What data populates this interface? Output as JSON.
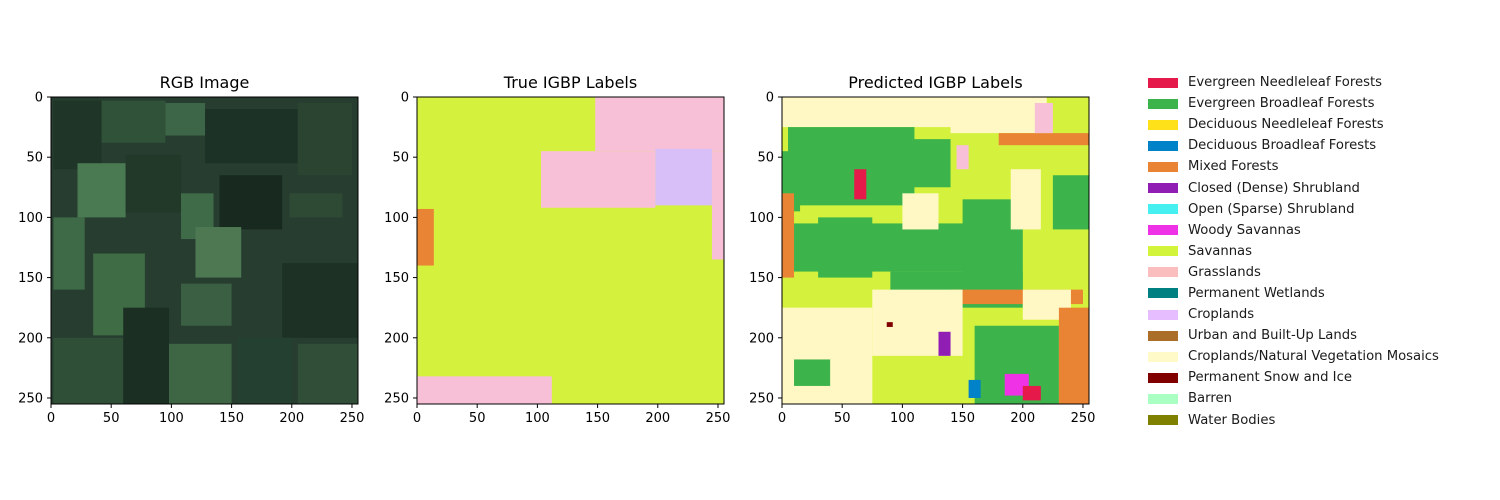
{
  "chart_data": [
    {
      "type": "heatmap",
      "title": "RGB Image",
      "xlim": [
        0,
        255
      ],
      "ylim": [
        255,
        0
      ],
      "xticks": [
        0,
        50,
        100,
        150,
        200,
        250
      ],
      "yticks": [
        0,
        50,
        100,
        150,
        200,
        250
      ],
      "fill": "#263d30",
      "regions": [
        {
          "x": [
            2,
            42
          ],
          "y": [
            3,
            60
          ],
          "color": "#1e3528"
        },
        {
          "x": [
            42,
            95
          ],
          "y": [
            3,
            38
          ],
          "color": "#2f5239"
        },
        {
          "x": [
            95,
            128
          ],
          "y": [
            5,
            32
          ],
          "color": "#3d6547"
        },
        {
          "x": [
            128,
            205
          ],
          "y": [
            10,
            55
          ],
          "color": "#1c3226"
        },
        {
          "x": [
            205,
            250
          ],
          "y": [
            5,
            65
          ],
          "color": "#2a4431"
        },
        {
          "x": [
            22,
            62
          ],
          "y": [
            55,
            100
          ],
          "color": "#4a7a52"
        },
        {
          "x": [
            62,
            108
          ],
          "y": [
            48,
            96
          ],
          "color": "#22392a"
        },
        {
          "x": [
            108,
            135
          ],
          "y": [
            80,
            118
          ],
          "color": "#3f6b48"
        },
        {
          "x": [
            140,
            192
          ],
          "y": [
            65,
            110
          ],
          "color": "#18291f"
        },
        {
          "x": [
            198,
            242
          ],
          "y": [
            80,
            100
          ],
          "color": "#2e4a35"
        },
        {
          "x": [
            2,
            28
          ],
          "y": [
            100,
            160
          ],
          "color": "#3e6a47"
        },
        {
          "x": [
            35,
            78
          ],
          "y": [
            130,
            198
          ],
          "color": "#3f6b45"
        },
        {
          "x": [
            120,
            158
          ],
          "y": [
            108,
            150
          ],
          "color": "#4d7852"
        },
        {
          "x": [
            108,
            150
          ],
          "y": [
            155,
            190
          ],
          "color": "#3a5f42"
        },
        {
          "x": [
            192,
            255
          ],
          "y": [
            138,
            200
          ],
          "color": "#1d3125"
        },
        {
          "x": [
            2,
            60
          ],
          "y": [
            200,
            255
          ],
          "color": "#2f5036"
        },
        {
          "x": [
            60,
            98
          ],
          "y": [
            175,
            255
          ],
          "color": "#1b2f23"
        },
        {
          "x": [
            98,
            150
          ],
          "y": [
            205,
            255
          ],
          "color": "#3e6544"
        },
        {
          "x": [
            155,
            200
          ],
          "y": [
            200,
            255
          ],
          "color": "#244030"
        },
        {
          "x": [
            205,
            255
          ],
          "y": [
            205,
            255
          ],
          "color": "#314f38"
        }
      ]
    },
    {
      "type": "heatmap",
      "title": "True IGBP Labels",
      "xlim": [
        0,
        255
      ],
      "ylim": [
        255,
        0
      ],
      "xticks": [
        0,
        50,
        100,
        150,
        200,
        250
      ],
      "yticks": [
        0,
        50,
        100,
        150,
        200,
        250
      ],
      "fill": "#d4f23d",
      "regions": [
        {
          "x": [
            148,
            255
          ],
          "y": [
            0,
            45
          ],
          "color": "#f8c0d6"
        },
        {
          "x": [
            103,
            198
          ],
          "y": [
            45,
            92
          ],
          "color": "#f8c0d6"
        },
        {
          "x": [
            198,
            245
          ],
          "y": [
            43,
            90
          ],
          "color": "#d9bff8"
        },
        {
          "x": [
            245,
            255
          ],
          "y": [
            45,
            135
          ],
          "color": "#f8c0d6"
        },
        {
          "x": [
            0,
            14
          ],
          "y": [
            93,
            140
          ],
          "color": "#e98434"
        },
        {
          "x": [
            0,
            112
          ],
          "y": [
            232,
            255
          ],
          "color": "#f8c0d6"
        }
      ]
    },
    {
      "type": "heatmap",
      "title": "Predicted IGBP Labels",
      "xlim": [
        0,
        255
      ],
      "ylim": [
        255,
        0
      ],
      "xticks": [
        0,
        50,
        100,
        150,
        200,
        250
      ],
      "yticks": [
        0,
        50,
        100,
        150,
        200,
        250
      ],
      "fill": "#d4f23d",
      "regions": [
        {
          "x": [
            0,
            150
          ],
          "y": [
            0,
            25
          ],
          "color": "#fff8c4"
        },
        {
          "x": [
            140,
            220
          ],
          "y": [
            0,
            30
          ],
          "color": "#fff8c4"
        },
        {
          "x": [
            220,
            255
          ],
          "y": [
            0,
            30
          ],
          "color": "#d4f23d"
        },
        {
          "x": [
            5,
            110
          ],
          "y": [
            25,
            90
          ],
          "color": "#3cb44b"
        },
        {
          "x": [
            70,
            140
          ],
          "y": [
            35,
            75
          ],
          "color": "#3cb44b"
        },
        {
          "x": [
            0,
            15
          ],
          "y": [
            45,
            95
          ],
          "color": "#3cb44b"
        },
        {
          "x": [
            30,
            75
          ],
          "y": [
            100,
            150
          ],
          "color": "#3cb44b"
        },
        {
          "x": [
            0,
            160
          ],
          "y": [
            105,
            145
          ],
          "color": "#3cb44b"
        },
        {
          "x": [
            90,
            200
          ],
          "y": [
            145,
            170
          ],
          "color": "#3cb44b"
        },
        {
          "x": [
            150,
            200
          ],
          "y": [
            85,
            175
          ],
          "color": "#3cb44b"
        },
        {
          "x": [
            225,
            255
          ],
          "y": [
            65,
            110
          ],
          "color": "#3cb44b"
        },
        {
          "x": [
            0,
            10
          ],
          "y": [
            80,
            150
          ],
          "color": "#e98434"
        },
        {
          "x": [
            140,
            250
          ],
          "y": [
            160,
            172
          ],
          "color": "#e98434"
        },
        {
          "x": [
            180,
            255
          ],
          "y": [
            30,
            40
          ],
          "color": "#e98434"
        },
        {
          "x": [
            0,
            75
          ],
          "y": [
            175,
            255
          ],
          "color": "#fff8c4"
        },
        {
          "x": [
            75,
            150
          ],
          "y": [
            160,
            215
          ],
          "color": "#fff8c4"
        },
        {
          "x": [
            10,
            40
          ],
          "y": [
            218,
            240
          ],
          "color": "#3cb44b"
        },
        {
          "x": [
            160,
            230
          ],
          "y": [
            190,
            255
          ],
          "color": "#3cb44b"
        },
        {
          "x": [
            200,
            240
          ],
          "y": [
            160,
            185
          ],
          "color": "#fff8c4"
        },
        {
          "x": [
            230,
            255
          ],
          "y": [
            175,
            255
          ],
          "color": "#e98434"
        },
        {
          "x": [
            190,
            215
          ],
          "y": [
            60,
            110
          ],
          "color": "#fff8c4"
        },
        {
          "x": [
            100,
            130
          ],
          "y": [
            80,
            110
          ],
          "color": "#fff8c4"
        },
        {
          "x": [
            185,
            205
          ],
          "y": [
            230,
            248
          ],
          "color": "#f032e6"
        },
        {
          "x": [
            200,
            215
          ],
          "y": [
            240,
            252
          ],
          "color": "#e6194b"
        },
        {
          "x": [
            145,
            155
          ],
          "y": [
            40,
            60
          ],
          "color": "#f8c0d6"
        },
        {
          "x": [
            60,
            70
          ],
          "y": [
            60,
            85
          ],
          "color": "#e6194b"
        },
        {
          "x": [
            130,
            140
          ],
          "y": [
            195,
            215
          ],
          "color": "#911eb4"
        },
        {
          "x": [
            155,
            165
          ],
          "y": [
            235,
            250
          ],
          "color": "#0082c8"
        },
        {
          "x": [
            210,
            225
          ],
          "y": [
            5,
            30
          ],
          "color": "#f8c0d6"
        },
        {
          "x": [
            87,
            92
          ],
          "y": [
            187,
            191
          ],
          "color": "#800000"
        }
      ]
    }
  ],
  "legend": [
    {
      "label": "Evergreen Needleleaf Forests",
      "color": "#e6194b"
    },
    {
      "label": "Evergreen Broadleaf Forests",
      "color": "#3cb44b"
    },
    {
      "label": "Deciduous Needleleaf Forests",
      "color": "#ffe119"
    },
    {
      "label": "Deciduous Broadleaf Forests",
      "color": "#0082c8"
    },
    {
      "label": "Mixed Forests",
      "color": "#e98434"
    },
    {
      "label": "Closed (Dense) Shrubland",
      "color": "#911eb4"
    },
    {
      "label": "Open (Sparse) Shrubland",
      "color": "#46f0f0"
    },
    {
      "label": "Woody Savannas",
      "color": "#f032e6"
    },
    {
      "label": "Savannas",
      "color": "#d2f53c"
    },
    {
      "label": "Grasslands",
      "color": "#fabebe"
    },
    {
      "label": "Permanent Wetlands",
      "color": "#008080"
    },
    {
      "label": "Croplands",
      "color": "#e6beff"
    },
    {
      "label": "Urban and Built-Up Lands",
      "color": "#aa6e28"
    },
    {
      "label": "Croplands/Natural Vegetation Mosaics",
      "color": "#fffac8"
    },
    {
      "label": "Permanent Snow and Ice",
      "color": "#800000"
    },
    {
      "label": "Barren",
      "color": "#aaffc3"
    },
    {
      "label": "Water Bodies",
      "color": "#808000"
    }
  ]
}
